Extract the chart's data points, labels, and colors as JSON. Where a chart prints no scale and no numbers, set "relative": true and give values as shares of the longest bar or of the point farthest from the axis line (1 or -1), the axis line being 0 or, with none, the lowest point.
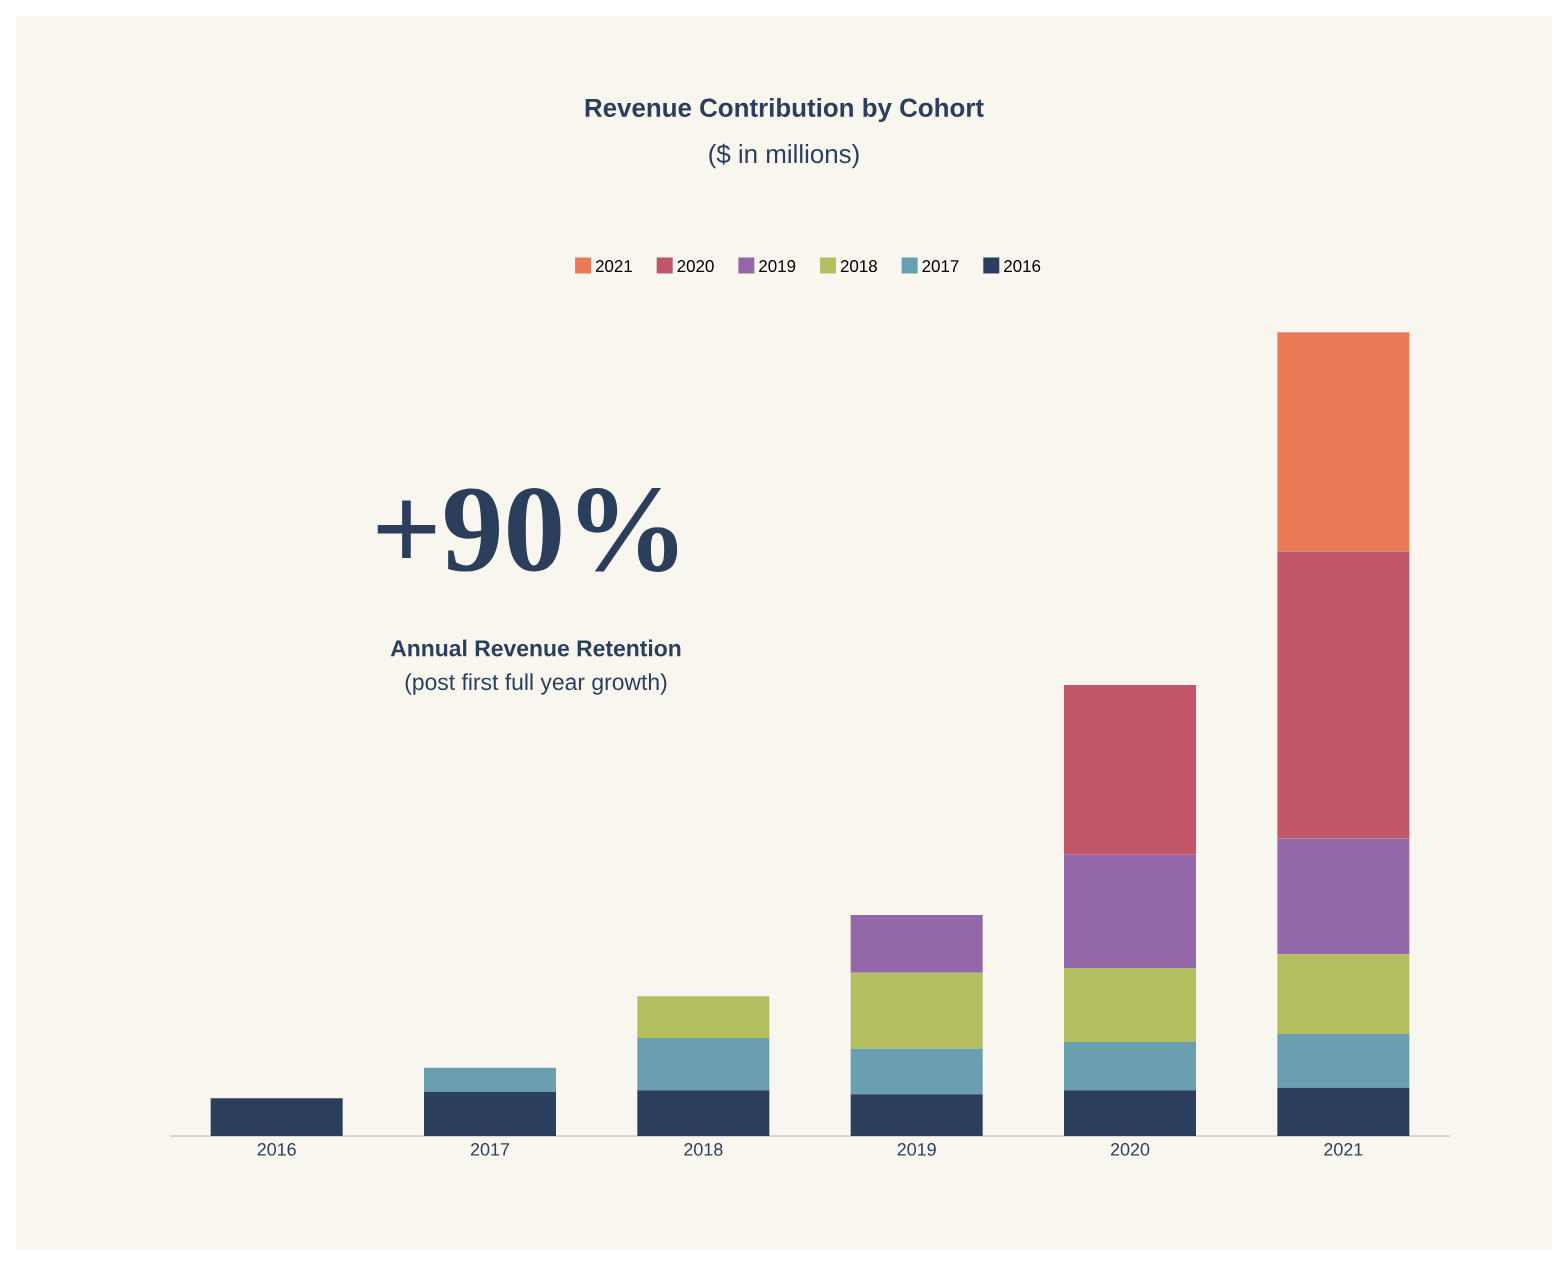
{
  "chart_data": {
    "type": "bar",
    "title": "Revenue Contribution by Cohort",
    "subtitle": "($ in millions)",
    "annotations": [
      "+90%",
      "Annual Revenue Retention",
      "(post first full year growth)"
    ],
    "categories": [
      "2016",
      "2017",
      "2018",
      "2019",
      "2020",
      "2021"
    ],
    "stacked": true,
    "relative": true,
    "legend": "top",
    "series": [
      {
        "name": "2016",
        "color": "#2b3f5c",
        "values": [
          0.047,
          0.055,
          0.057,
          0.052,
          0.057,
          0.06
        ]
      },
      {
        "name": "2017",
        "color": "#6a9fb0",
        "values": [
          null,
          0.03,
          0.065,
          0.057,
          0.06,
          0.067
        ]
      },
      {
        "name": "2018",
        "color": "#b4bf62",
        "values": [
          null,
          null,
          0.052,
          0.094,
          0.092,
          0.099
        ]
      },
      {
        "name": "2019",
        "color": "#9268a8",
        "values": [
          null,
          null,
          null,
          0.072,
          0.141,
          0.144
        ]
      },
      {
        "name": "2020",
        "color": "#c1566a",
        "values": [
          null,
          null,
          null,
          null,
          0.211,
          0.357
        ]
      },
      {
        "name": "2021",
        "color": "#e97a55",
        "values": [
          null,
          null,
          null,
          null,
          null,
          0.273
        ]
      }
    ]
  }
}
